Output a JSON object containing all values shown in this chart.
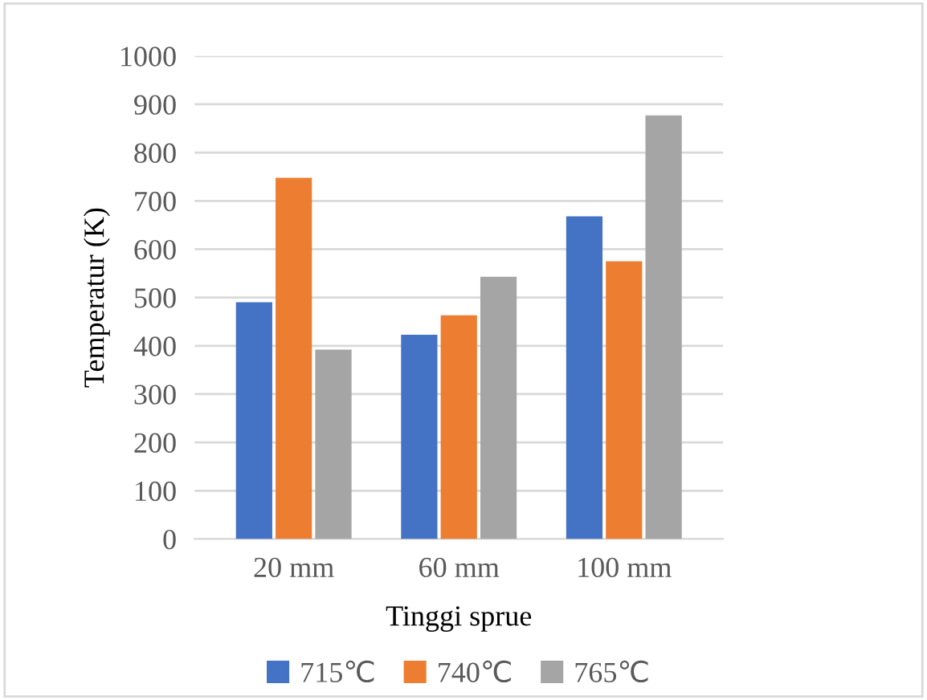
{
  "chart_data": {
    "type": "bar",
    "xlabel": "Tinggi sprue",
    "ylabel": "Temperatur (K)",
    "categories": [
      "20 mm",
      "60 mm",
      "100 mm"
    ],
    "series": [
      {
        "name": "715℃",
        "color": "#4472c4",
        "values": [
          490,
          423,
          668
        ]
      },
      {
        "name": "740℃",
        "color": "#ed7d31",
        "values": [
          748,
          463,
          575
        ]
      },
      {
        "name": "765℃",
        "color": "#a5a5a5",
        "values": [
          392,
          543,
          877
        ]
      }
    ],
    "ylim": [
      0,
      1000
    ],
    "yticks": [
      0,
      100,
      200,
      300,
      400,
      500,
      600,
      700,
      800,
      900,
      1000
    ],
    "grid": "y",
    "legend": "bottom"
  }
}
